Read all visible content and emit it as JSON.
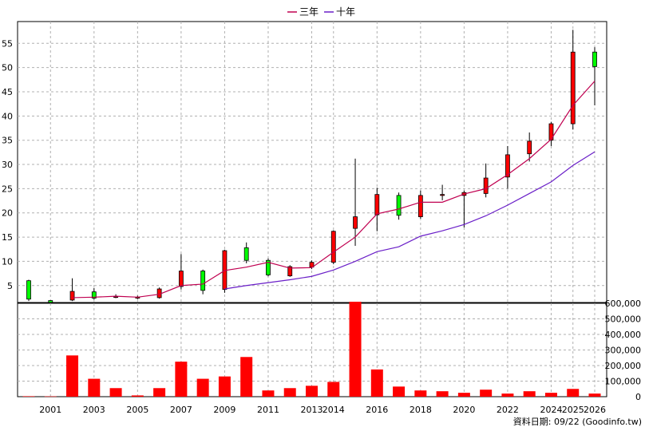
{
  "chart_data": {
    "type": "candlestick",
    "legend": {
      "placement": "top-center",
      "items": [
        {
          "label": "三年",
          "color": "#c00050"
        },
        {
          "label": "十年",
          "color": "#6a1fc8"
        }
      ]
    },
    "x_tick_labels": [
      "2001",
      "2003",
      "2005",
      "2007",
      "2009",
      "2011",
      "2013",
      "2014",
      "2016",
      "2018",
      "2020",
      "2022",
      "2024",
      "2025",
      "2026"
    ],
    "price_axis": {
      "ticks": [
        "5",
        "10",
        "15",
        "20",
        "25",
        "30",
        "35",
        "40",
        "45",
        "50",
        "55"
      ],
      "min": 1.5,
      "max": 59.5,
      "grid": true
    },
    "volume_axis": {
      "ticks": [
        "0",
        "100,000",
        "200,000",
        "300,000",
        "400,000",
        "500,000",
        "600,000"
      ],
      "min": 0,
      "max": 600000,
      "grid": true
    },
    "colors": {
      "up": "#ff0000",
      "down": "#00ff00",
      "volume": "#ff0000",
      "ma3": "#c00050",
      "ma10": "#6a1fc8",
      "grid": "#b0b0b0"
    },
    "candles": [
      {
        "year": 2000,
        "open": 6.0,
        "close": 2.2,
        "high": 6.2,
        "low": 1.8,
        "volume": 3000
      },
      {
        "year": 2001,
        "open": 1.9,
        "close": 1.5,
        "high": 2.0,
        "low": 1.4,
        "volume": 2000
      },
      {
        "year": 2002,
        "open": 2.0,
        "close": 3.8,
        "high": 6.5,
        "low": 1.8,
        "volume": 265000
      },
      {
        "year": 2003,
        "open": 3.7,
        "close": 2.4,
        "high": 4.5,
        "low": 2.1,
        "volume": 115000
      },
      {
        "year": 2004,
        "open": 2.6,
        "close": 2.7,
        "high": 3.2,
        "low": 2.4,
        "volume": 55000
      },
      {
        "year": 2005,
        "open": 2.4,
        "close": 2.6,
        "high": 2.9,
        "low": 2.2,
        "volume": 8000
      },
      {
        "year": 2006,
        "open": 2.5,
        "close": 4.3,
        "high": 4.6,
        "low": 2.3,
        "volume": 55000
      },
      {
        "year": 2007,
        "open": 4.8,
        "close": 8.0,
        "high": 11.5,
        "low": 4.2,
        "volume": 225000
      },
      {
        "year": 2008,
        "open": 8.0,
        "close": 4.0,
        "high": 8.3,
        "low": 3.2,
        "volume": 115000
      },
      {
        "year": 2009,
        "open": 4.2,
        "close": 12.2,
        "high": 12.4,
        "low": 3.5,
        "volume": 130000
      },
      {
        "year": 2010,
        "open": 12.8,
        "close": 10.2,
        "high": 13.9,
        "low": 9.6,
        "volume": 255000
      },
      {
        "year": 2011,
        "open": 10.2,
        "close": 7.2,
        "high": 10.6,
        "low": 6.9,
        "volume": 40000
      },
      {
        "year": 2012,
        "open": 7.0,
        "close": 8.9,
        "high": 9.2,
        "low": 6.8,
        "volume": 55000
      },
      {
        "year": 2013,
        "open": 8.8,
        "close": 9.8,
        "high": 10.2,
        "low": 8.4,
        "volume": 70000
      },
      {
        "year": 2014,
        "open": 9.8,
        "close": 16.2,
        "high": 16.4,
        "low": 9.4,
        "volume": 95000
      },
      {
        "year": 2015,
        "open": 16.8,
        "close": 19.2,
        "high": 31.2,
        "low": 13.2,
        "volume": 610000
      },
      {
        "year": 2016,
        "open": 19.6,
        "close": 23.8,
        "high": 25.2,
        "low": 16.2,
        "volume": 175000
      },
      {
        "year": 2017,
        "open": 23.6,
        "close": 19.5,
        "high": 24.2,
        "low": 18.6,
        "volume": 65000
      },
      {
        "year": 2018,
        "open": 19.2,
        "close": 23.6,
        "high": 24.6,
        "low": 18.8,
        "volume": 40000
      },
      {
        "year": 2019,
        "open": 23.6,
        "close": 23.8,
        "high": 25.8,
        "low": 22.6,
        "volume": 35000
      },
      {
        "year": 2020,
        "open": 23.6,
        "close": 24.2,
        "high": 24.6,
        "low": 17.0,
        "volume": 25000
      },
      {
        "year": 2021,
        "open": 24.0,
        "close": 27.2,
        "high": 30.2,
        "low": 23.2,
        "volume": 45000
      },
      {
        "year": 2022,
        "open": 27.4,
        "close": 32.0,
        "high": 33.8,
        "low": 25.0,
        "volume": 20000
      },
      {
        "year": 2023,
        "open": 32.2,
        "close": 34.8,
        "high": 36.6,
        "low": 30.6,
        "volume": 35000
      },
      {
        "year": 2024,
        "open": 35.0,
        "close": 38.4,
        "high": 38.8,
        "low": 33.8,
        "volume": 25000
      },
      {
        "year": 2025,
        "open": 38.4,
        "close": 53.2,
        "high": 57.8,
        "low": 37.2,
        "volume": 50000
      },
      {
        "year": 2026,
        "open": 53.2,
        "close": 50.2,
        "high": 54.2,
        "low": 42.2,
        "volume": 20000
      }
    ],
    "ma3": [
      {
        "year": 2002,
        "value": 2.5
      },
      {
        "year": 2003,
        "value": 2.6
      },
      {
        "year": 2004,
        "value": 2.8
      },
      {
        "year": 2005,
        "value": 2.6
      },
      {
        "year": 2006,
        "value": 3.2
      },
      {
        "year": 2007,
        "value": 5.0
      },
      {
        "year": 2008,
        "value": 5.3
      },
      {
        "year": 2009,
        "value": 8.1
      },
      {
        "year": 2010,
        "value": 8.8
      },
      {
        "year": 2011,
        "value": 9.8
      },
      {
        "year": 2012,
        "value": 8.6
      },
      {
        "year": 2013,
        "value": 8.7
      },
      {
        "year": 2014,
        "value": 11.9
      },
      {
        "year": 2015,
        "value": 15.0
      },
      {
        "year": 2016,
        "value": 19.8
      },
      {
        "year": 2017,
        "value": 20.8
      },
      {
        "year": 2018,
        "value": 22.2
      },
      {
        "year": 2019,
        "value": 22.2
      },
      {
        "year": 2020,
        "value": 23.9
      },
      {
        "year": 2021,
        "value": 25.0
      },
      {
        "year": 2022,
        "value": 27.9
      },
      {
        "year": 2023,
        "value": 31.2
      },
      {
        "year": 2024,
        "value": 35.2
      },
      {
        "year": 2025,
        "value": 42.2
      },
      {
        "year": 2026,
        "value": 47.2
      }
    ],
    "ma10": [
      {
        "year": 2009,
        "value": 4.3
      },
      {
        "year": 2010,
        "value": 5.0
      },
      {
        "year": 2011,
        "value": 5.6
      },
      {
        "year": 2012,
        "value": 6.2
      },
      {
        "year": 2013,
        "value": 6.9
      },
      {
        "year": 2014,
        "value": 8.2
      },
      {
        "year": 2015,
        "value": 10.0
      },
      {
        "year": 2016,
        "value": 12.0
      },
      {
        "year": 2017,
        "value": 13.0
      },
      {
        "year": 2018,
        "value": 15.2
      },
      {
        "year": 2019,
        "value": 16.3
      },
      {
        "year": 2020,
        "value": 17.6
      },
      {
        "year": 2021,
        "value": 19.4
      },
      {
        "year": 2022,
        "value": 21.6
      },
      {
        "year": 2023,
        "value": 24.0
      },
      {
        "year": 2024,
        "value": 26.4
      },
      {
        "year": 2025,
        "value": 29.8
      },
      {
        "year": 2026,
        "value": 32.6
      }
    ],
    "source_note": "資料日期: 09/22 (Goodinfo.tw)"
  }
}
